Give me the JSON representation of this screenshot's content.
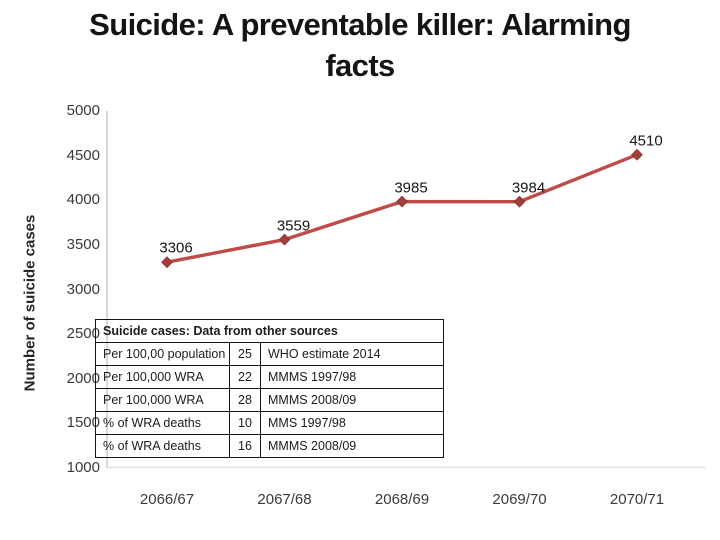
{
  "slide": {
    "title_line1": "Suicide: A preventable killer: Alarming",
    "title_line2": "facts"
  },
  "chart_data": {
    "type": "line",
    "categories": [
      "2066/67",
      "2067/68",
      "2068/69",
      "2069/70",
      "2070/71"
    ],
    "series": [
      {
        "name": "Number of suicide cases",
        "values": [
          3306,
          3559,
          3985,
          3984,
          4510
        ]
      }
    ],
    "data_labels": [
      "3306",
      "3559",
      "3985",
      "3984",
      "4510"
    ],
    "ylabel": "Number of suicide cases",
    "xlabel": "",
    "ylim": [
      1000,
      5000
    ],
    "yticks": [
      "5000",
      "4500",
      "4000",
      "3500",
      "3000",
      "2500",
      "2000",
      "1500",
      "1000"
    ],
    "grid": false,
    "legend": "none",
    "line_color": "#BE4B48",
    "marker": "diamond",
    "marker_fill": "#A33E3B",
    "marker_stroke": "#8C3532",
    "axis_line_color": "#C3C3C3",
    "baseline_color": "#E4E4E4"
  },
  "table": {
    "header": "Suicide cases: Data from other sources",
    "rows": [
      [
        "Per 100,00 population",
        "25",
        "WHO estimate 2014"
      ],
      [
        "Per 100,000 WRA",
        "22",
        "MMMS 1997/98"
      ],
      [
        "Per 100,000 WRA",
        "28",
        "MMMS 2008/09"
      ],
      [
        "% of WRA deaths",
        "10",
        "MMS 1997/98"
      ],
      [
        "% of WRA deaths",
        "16",
        "MMMS 2008/09"
      ]
    ]
  }
}
